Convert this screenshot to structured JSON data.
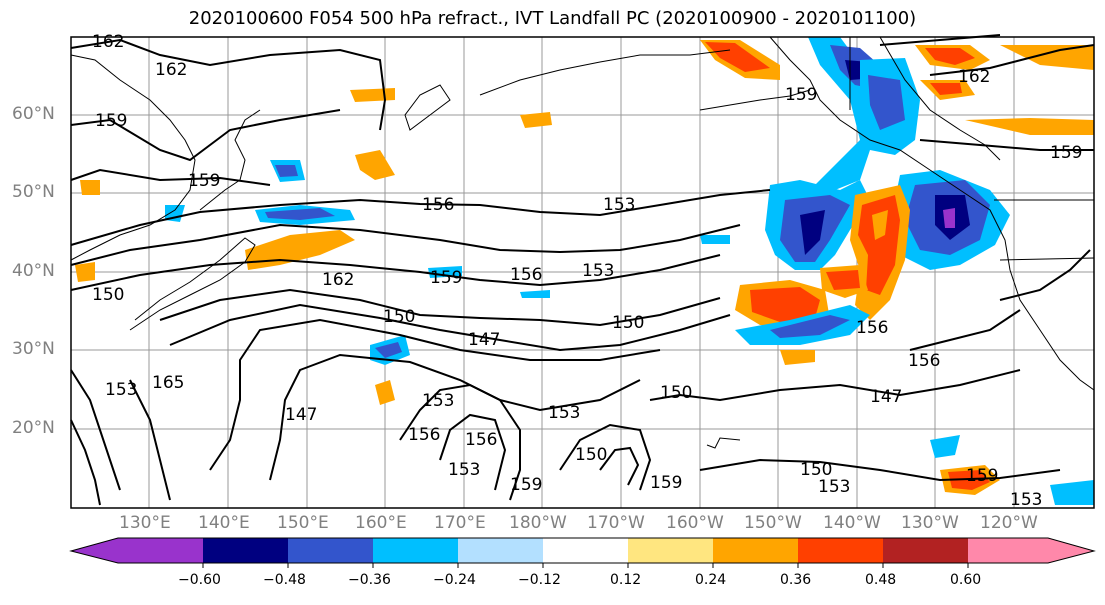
{
  "title": "2020100600 F054 500 hPa refract., IVT Landfall PC (2020100900 - 2020101100)",
  "lat_labels": [
    "60°N",
    "50°N",
    "40°N",
    "30°N",
    "20°N"
  ],
  "lon_labels": [
    "130°E",
    "140°E",
    "150°E",
    "160°E",
    "170°E",
    "180°W",
    "170°W",
    "160°W",
    "150°W",
    "140°W",
    "130°W",
    "120°W"
  ],
  "colorbar": {
    "ticks": [
      "−0.60",
      "−0.48",
      "−0.36",
      "−0.24",
      "−0.12",
      "0.12",
      "0.24",
      "0.36",
      "0.48",
      "0.60"
    ],
    "colors": [
      "#9933cc",
      "#000080",
      "#3355cc",
      "#00bfff",
      "#b3e0ff",
      "#ffffff",
      "#ffe680",
      "#ffa500",
      "#ff4000",
      "#b22222",
      "#ff88aa"
    ]
  },
  "contour_labels": [
    "162",
    "162",
    "162",
    "159",
    "159",
    "159",
    "156",
    "153",
    "162",
    "159",
    "156",
    "153",
    "150",
    "147",
    "150",
    "153",
    "165",
    "147",
    "153",
    "156",
    "156",
    "153",
    "153",
    "150",
    "150",
    "159",
    "159",
    "150",
    "153",
    "147",
    "156",
    "156",
    "150",
    "159",
    "159",
    "153"
  ]
}
